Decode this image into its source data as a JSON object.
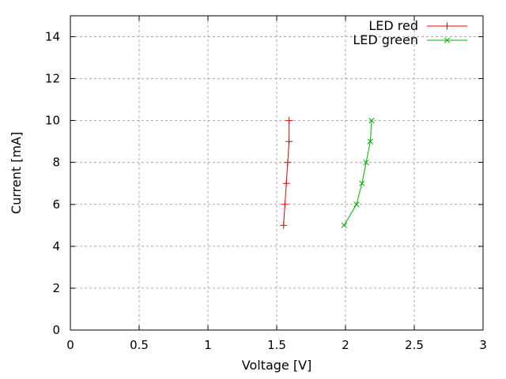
{
  "chart_data": {
    "type": "line",
    "title": "",
    "xlabel": "Voltage [V]",
    "ylabel": "Current [mA]",
    "xlim": [
      0,
      3
    ],
    "ylim": [
      0,
      15
    ],
    "xticks": {
      "values": [
        0,
        0.5,
        1,
        1.5,
        2,
        2.5,
        3
      ],
      "labels": [
        "0",
        "0.5",
        "1",
        "1.5",
        "2",
        "2.5",
        "3"
      ]
    },
    "yticks": {
      "values": [
        0,
        2,
        4,
        6,
        8,
        10,
        12,
        14
      ],
      "labels": [
        "0",
        "2",
        "4",
        "6",
        "8",
        "10",
        "12",
        "14"
      ]
    },
    "grid": true,
    "grid_color": "#a8a8a8",
    "border_color": "#000000",
    "text_color": "#000000",
    "background_color": "#ffffff",
    "legend": {
      "position": "top-right-inside",
      "box": false
    },
    "series": [
      {
        "name": "LED red",
        "color": "#ee0000",
        "marker": "plus",
        "x": [
          1.55,
          1.56,
          1.57,
          1.58,
          1.59,
          1.59
        ],
        "y": [
          5,
          6,
          7,
          8,
          9,
          10
        ]
      },
      {
        "name": "LED green",
        "color": "#00b400",
        "marker": "cross",
        "x": [
          1.99,
          2.08,
          2.12,
          2.15,
          2.18,
          2.19
        ],
        "y": [
          5,
          6,
          7,
          8,
          9,
          10
        ]
      }
    ]
  }
}
